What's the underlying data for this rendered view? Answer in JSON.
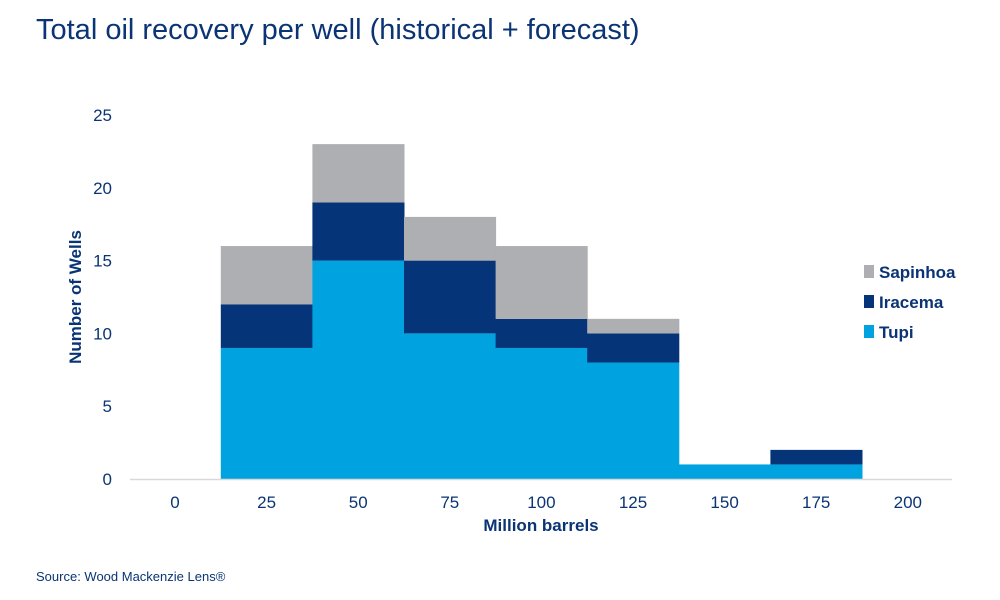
{
  "title": "Total oil recovery per well (historical + forecast)",
  "source": "Source: Wood Mackenzie Lens®",
  "chart_data": {
    "type": "bar",
    "stacked": true,
    "title": "Total oil recovery per well (historical + forecast)",
    "xlabel": "Million barrels",
    "ylabel": "Number of Wells",
    "categories": [
      "0",
      "25",
      "50",
      "75",
      "100",
      "125",
      "150",
      "175",
      "200"
    ],
    "yticks": [
      "0",
      "5",
      "10",
      "15",
      "20",
      "25"
    ],
    "ylim": [
      0,
      25
    ],
    "grid": false,
    "legend_position": "right",
    "series": [
      {
        "name": "Tupi",
        "color": "#00a3e0",
        "values": [
          0,
          9,
          15,
          10,
          9,
          8,
          1,
          1,
          0
        ]
      },
      {
        "name": "Iracema",
        "color": "#063478",
        "values": [
          0,
          3,
          4,
          5,
          2,
          2,
          0,
          1,
          0
        ]
      },
      {
        "name": "Sapinhoa",
        "color": "#adafb2",
        "values": [
          0,
          4,
          4,
          3,
          5,
          1,
          0,
          0,
          0
        ]
      }
    ]
  }
}
